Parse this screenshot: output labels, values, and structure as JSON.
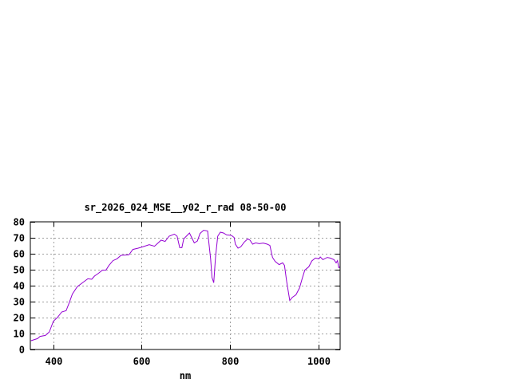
{
  "chart_data": {
    "type": "line",
    "title": "sr_2026_024_MSE__y02_r_rad 08-50-00",
    "xlabel": "nm",
    "ylabel": "",
    "xlim": [
      348,
      1049
    ],
    "ylim": [
      0,
      80
    ],
    "xticks": [
      400,
      600,
      800,
      1000
    ],
    "yticks": [
      0,
      10,
      20,
      30,
      40,
      50,
      60,
      70,
      80
    ],
    "grid": true,
    "legend": "none",
    "line_color": "#9400d3",
    "series": [
      {
        "x": [
          349.5,
          364,
          370,
          382,
          391,
          400,
          409,
          419,
          429,
          436,
          443,
          454,
          466,
          478,
          487,
          493,
          502,
          511,
          519,
          526,
          535,
          544,
          553,
          571,
          580,
          592,
          602,
          617,
          629,
          644,
          653,
          662,
          674,
          680,
          686,
          691,
          695,
          708,
          719,
          726,
          732,
          740,
          749,
          756,
          759,
          763,
          767,
          772,
          778,
          785,
          792,
          803,
          809,
          812,
          818,
          824,
          832,
          840,
          845,
          851,
          858,
          866,
          875,
          884,
          890,
          896,
          902,
          911,
          919,
          923,
          928,
          935,
          941,
          949,
          957,
          963,
          969,
          978,
          985,
          993,
          1001,
          1004,
          1010,
          1020,
          1026,
          1035,
          1040,
          1043,
          1046,
          1049
        ],
        "y": [
          5.5,
          6.8,
          8.2,
          8.8,
          11,
          17.7,
          20,
          23.5,
          24.3,
          29.3,
          34.7,
          39.3,
          41.8,
          44.3,
          44,
          46,
          47.7,
          49.7,
          49.7,
          52.7,
          55.7,
          56.8,
          59,
          59.3,
          62.7,
          63.5,
          64.3,
          65.7,
          64.7,
          68.5,
          67.7,
          71,
          72.3,
          71,
          63.8,
          63.8,
          69.3,
          73,
          66.8,
          68,
          72.7,
          74.7,
          74.3,
          56.8,
          45.2,
          41.8,
          57.7,
          71,
          73.5,
          73,
          71.8,
          71.5,
          70.2,
          66,
          63.5,
          64.3,
          67.3,
          69.3,
          68.5,
          66,
          66.8,
          66.3,
          66.7,
          66,
          65.2,
          57.7,
          55.2,
          53.2,
          54.3,
          52.7,
          42.7,
          30.7,
          32.7,
          34.3,
          38.5,
          44.3,
          49.7,
          51.8,
          55.5,
          57.3,
          56.8,
          58,
          56.3,
          57.7,
          57.3,
          56.3,
          54.3,
          55.7,
          51.3,
          51.8
        ]
      }
    ]
  }
}
